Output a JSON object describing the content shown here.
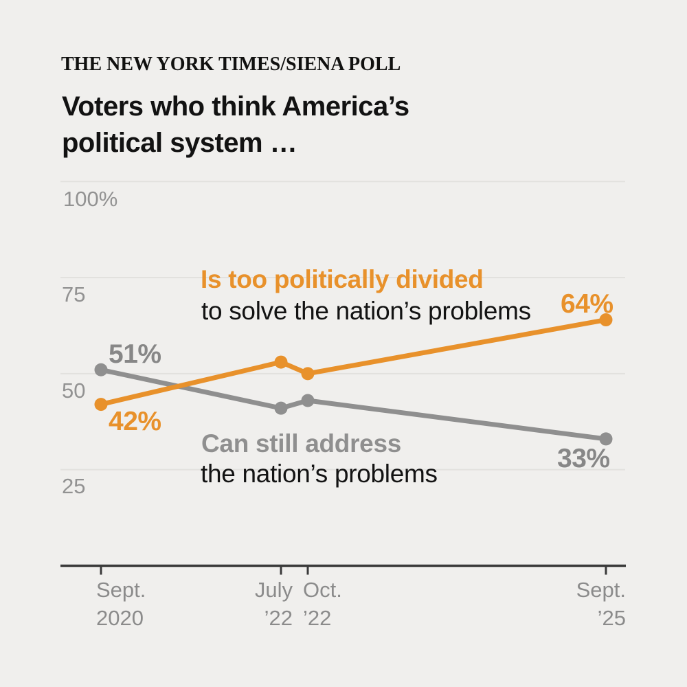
{
  "header": {
    "kicker": "THE NEW YORK TIMES/SIENA POLL",
    "title_line1": "Voters who think America’s",
    "title_line2": "political system …"
  },
  "palette": {
    "background": "#f0efed",
    "gridline": "#e2e1de",
    "axis": "#3a3a3a",
    "orange": "#e8912b",
    "gray_line": "#8f8f8f",
    "black_text": "#131313"
  },
  "chart_data": {
    "type": "line",
    "title": "Voters who think America’s political system …",
    "source_kicker": "THE NEW YORK TIMES/SIENA POLL",
    "x_categories": [
      "Sept. 2020",
      "July ’22",
      "Oct. ’22",
      "Sept. ’25"
    ],
    "x_tick_labels": [
      {
        "line1": "Sept.",
        "line2": "2020"
      },
      {
        "line1": "July",
        "line2": "’22"
      },
      {
        "line1": "Oct.",
        "line2": "’22"
      },
      {
        "line1": "Sept.",
        "line2": "’25"
      }
    ],
    "y_tick_labels": [
      "100%",
      "75",
      "50",
      "25"
    ],
    "y_gridlines": [
      100,
      75,
      50,
      25
    ],
    "ylim": [
      0,
      100
    ],
    "grid": true,
    "legend_position": "inline-annotations",
    "series": [
      {
        "name": "Is too politically divided to solve the nation’s problems",
        "legend_bold": "Is too politically divided",
        "legend_rest": "to solve the nation’s problems",
        "color": "#e8912b",
        "values": [
          42,
          53,
          50,
          64
        ],
        "start_label": "42%",
        "end_label": "64%"
      },
      {
        "name": "Can still address the nation’s problems",
        "legend_bold": "Can still address",
        "legend_rest": "the nation’s problems",
        "color": "#8f8f8f",
        "values": [
          51,
          41,
          43,
          33
        ],
        "start_label": "51%",
        "end_label": "33%"
      }
    ]
  }
}
